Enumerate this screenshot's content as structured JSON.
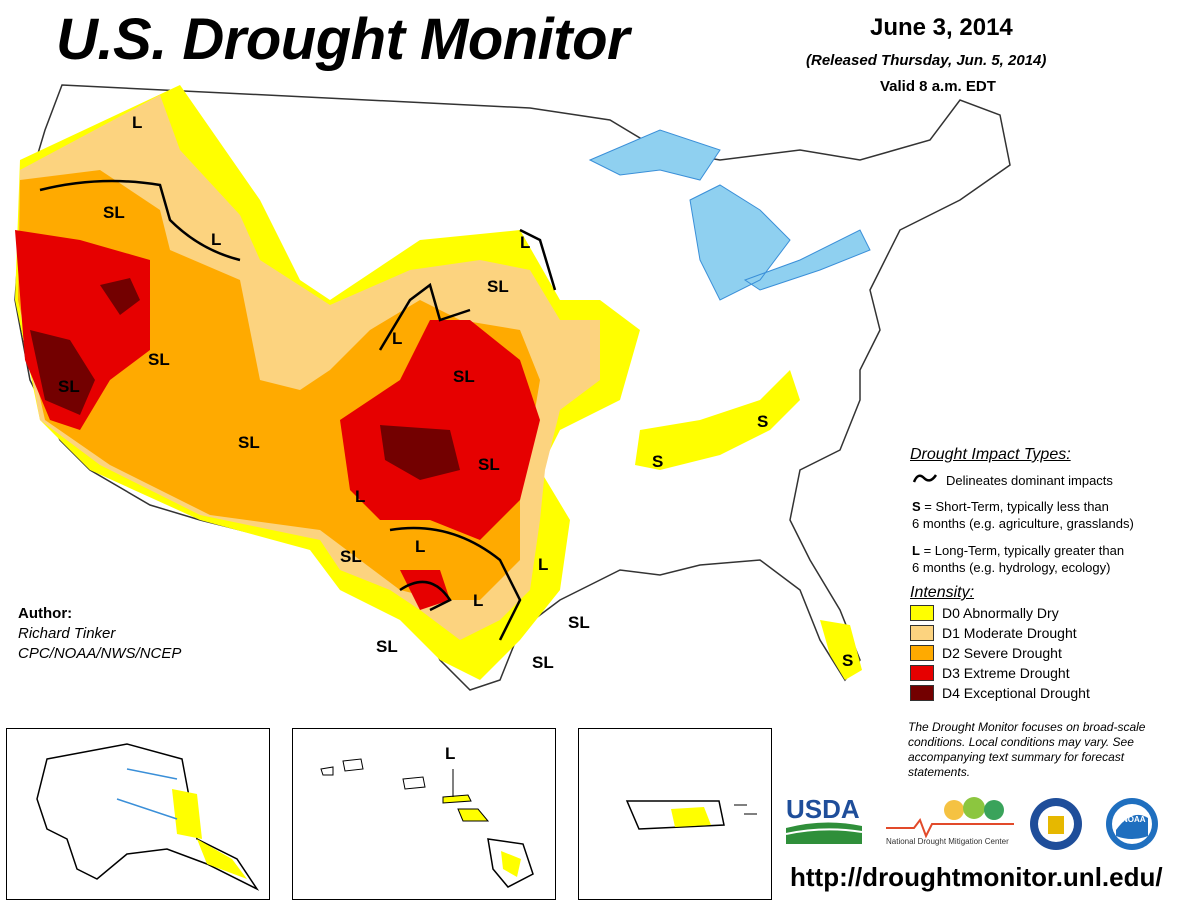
{
  "header": {
    "title": "U.S. Drought Monitor",
    "date": "June 3, 2014",
    "released": "(Released Thursday, Jun. 5, 2014)",
    "valid": "Valid 8 a.m. EDT"
  },
  "author": {
    "label": "Author:",
    "name": "Richard Tinker",
    "org": "CPC/NOAA/NWS/NCEP"
  },
  "impact_legend": {
    "title": "Drought Impact Types:",
    "delineates": "Delineates dominant impacts",
    "short_term_key": "S",
    "short_term_text": "= Short-Term, typically less than",
    "short_term_text2": "6 months (e.g. agriculture, grasslands)",
    "long_term_key": "L",
    "long_term_text": "= Long-Term, typically greater than",
    "long_term_text2": "6 months (e.g. hydrology, ecology)"
  },
  "intensity_legend": {
    "title": "Intensity:",
    "items": [
      {
        "label": "D0 Abnormally Dry",
        "color": "#ffff00"
      },
      {
        "label": "D1 Moderate Drought",
        "color": "#fcd37f"
      },
      {
        "label": "D2 Severe Drought",
        "color": "#ffaa00"
      },
      {
        "label": "D3 Extreme Drought",
        "color": "#e60000"
      },
      {
        "label": "D4 Exceptional Drought",
        "color": "#730000"
      }
    ]
  },
  "note": "The Drought Monitor focuses on broad-scale conditions. Local conditions may vary. See accompanying text summary for forecast statements.",
  "url": "http://droughtmonitor.unl.edu/",
  "map_labels": {
    "sl": "SL",
    "s": "S",
    "l": "L"
  },
  "logos": {
    "usda": "USDA",
    "ndmc": "National Drought Mitigation Center",
    "noaa": "NOAA"
  },
  "colors": {
    "d0": "#ffff00",
    "d1": "#fcd37f",
    "d2": "#ffaa00",
    "d3": "#e60000",
    "d4": "#730000",
    "water": "#8fd0f0",
    "river": "#3a8fd8",
    "boundary": "#999999"
  }
}
